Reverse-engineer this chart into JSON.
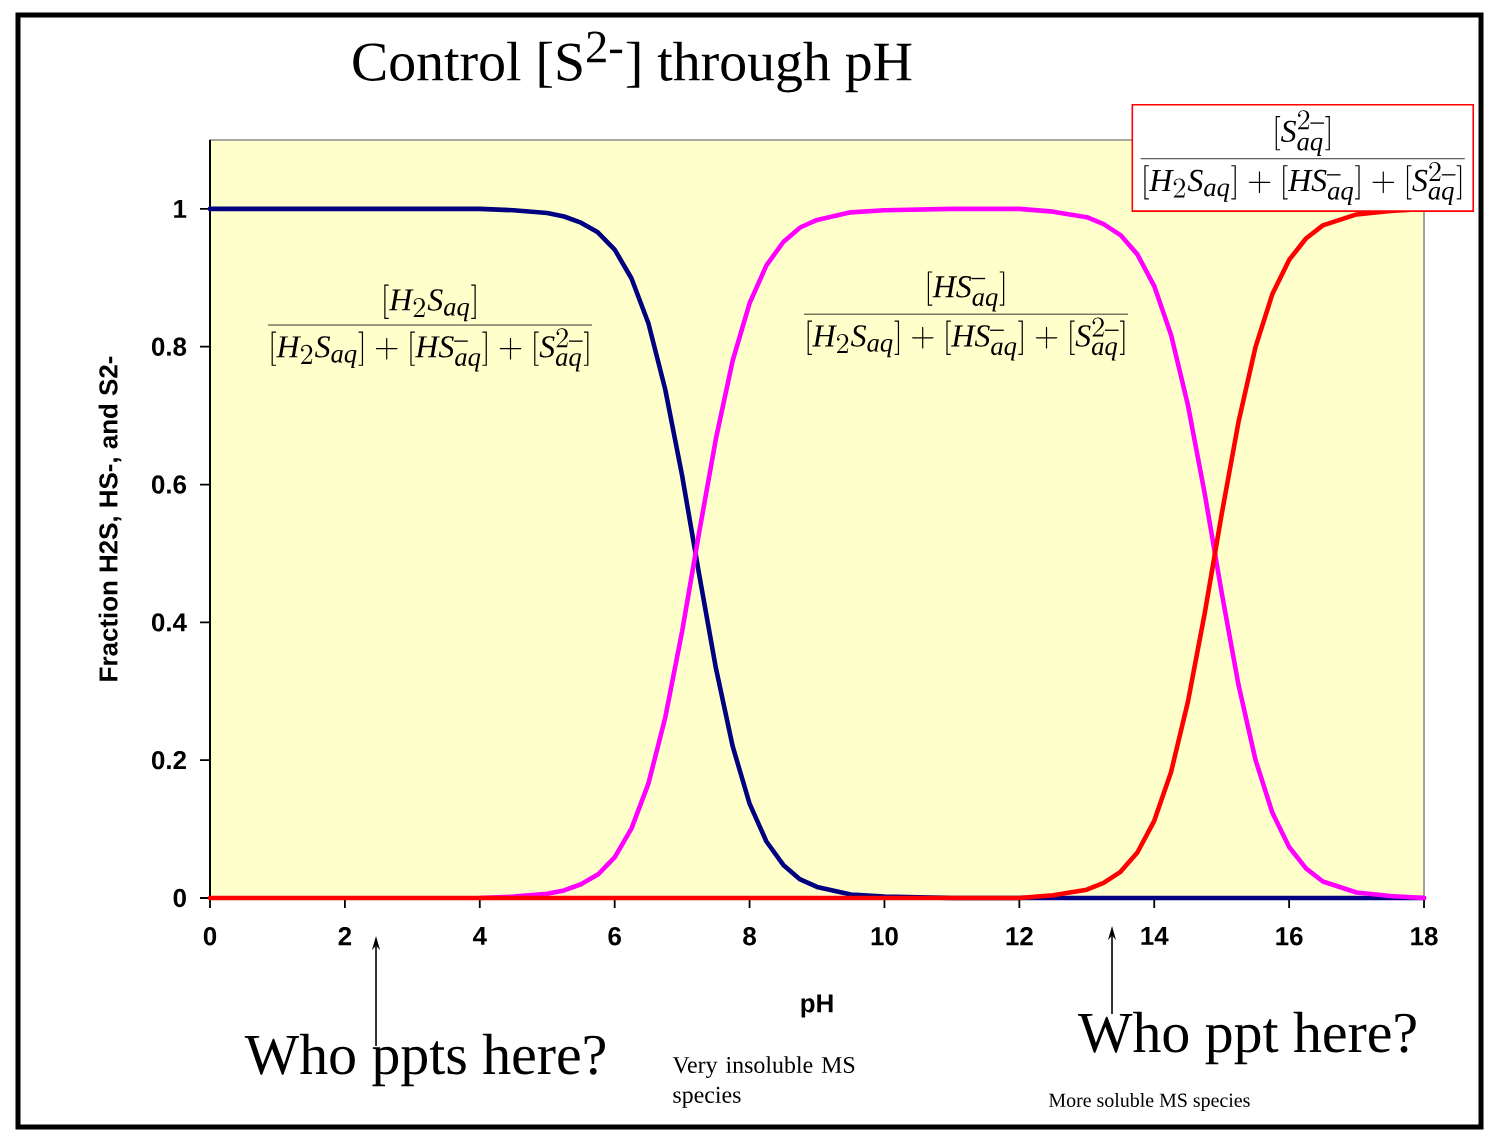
{
  "chart_data": {
    "type": "line",
    "title": "Control [S$^{2-}$] through pH",
    "xlabel": "pH",
    "ylabel": "Fraction H2S, HS-, and S2-",
    "x": [
      0,
      1,
      2,
      3,
      4,
      4.5,
      5,
      5.25,
      5.5,
      5.75,
      6,
      6.25,
      6.5,
      6.75,
      7,
      7.25,
      7.5,
      7.75,
      8,
      8.25,
      8.5,
      8.75,
      9,
      9.5,
      10,
      11,
      12,
      12.5,
      13,
      13.25,
      13.5,
      13.75,
      14,
      14.25,
      14.5,
      14.75,
      15,
      15.25,
      15.5,
      15.75,
      16,
      16.25,
      16.5,
      17,
      17.5,
      18
    ],
    "series": [
      {
        "name": "\\frac{[H_2S_{aq}]}{[H_2S_{aq}]+[HS^{-}_{aq}]+[S^{2-}_{aq}]}",
        "color": "#000080",
        "values": [
          1,
          1,
          1,
          1,
          1,
          0.998,
          0.994,
          0.989,
          0.98,
          0.966,
          0.941,
          0.899,
          0.834,
          0.738,
          0.613,
          0.471,
          0.334,
          0.22,
          0.137,
          0.082,
          0.048,
          0.027,
          0.016,
          0.005,
          0.002,
          0,
          0,
          0,
          0,
          0,
          0,
          0,
          0,
          0,
          0,
          0,
          0,
          0,
          0,
          0,
          0,
          0,
          0,
          0,
          0,
          0
        ]
      },
      {
        "name": "\\frac{[HS^{-}_{aq}]}{[H_2S_{aq}]+[HS^{-}_{aq}]+[S^{2-}_{aq}]}",
        "color": "#ff00ff",
        "values": [
          null,
          null,
          null,
          null,
          0,
          0.002,
          0.006,
          0.011,
          0.02,
          0.034,
          0.059,
          0.101,
          0.166,
          0.262,
          0.387,
          0.529,
          0.666,
          0.78,
          0.863,
          0.918,
          0.952,
          0.973,
          0.984,
          0.995,
          0.998,
          1,
          1,
          0.996,
          0.988,
          0.978,
          0.962,
          0.934,
          0.888,
          0.817,
          0.715,
          0.586,
          0.443,
          0.309,
          0.201,
          0.124,
          0.074,
          0.043,
          0.024,
          0.008,
          0.003,
          0
        ]
      },
      {
        "name": "\\frac{[S^{2-}_{aq}]}{[H_2S_{aq}]+[HS^{-}_{aq}]+[S^{2-}_{aq}]}",
        "color": "#ff0000",
        "values": [
          0,
          0,
          0,
          0,
          0,
          0,
          0,
          0,
          0,
          0,
          0,
          0,
          0,
          0,
          0,
          0,
          0,
          0,
          0,
          0,
          0,
          0,
          0,
          0,
          0,
          0,
          0,
          0.004,
          0.012,
          0.022,
          0.038,
          0.066,
          0.112,
          0.183,
          0.285,
          0.414,
          0.557,
          0.691,
          0.799,
          0.876,
          0.926,
          0.957,
          0.976,
          0.992,
          0.997,
          1
        ]
      }
    ],
    "xlim": [
      0,
      18
    ],
    "ylim": [
      0,
      1.1
    ],
    "xticks": [
      0,
      2,
      4,
      6,
      8,
      10,
      12,
      14,
      16,
      18
    ],
    "yticks": [
      0,
      0.2,
      0.4,
      0.6,
      0.8,
      1
    ],
    "annotations": [
      "Who ppts here?",
      "Very insoluble MS species",
      "Who ppt here?",
      "More soluble MS species"
    ]
  }
}
